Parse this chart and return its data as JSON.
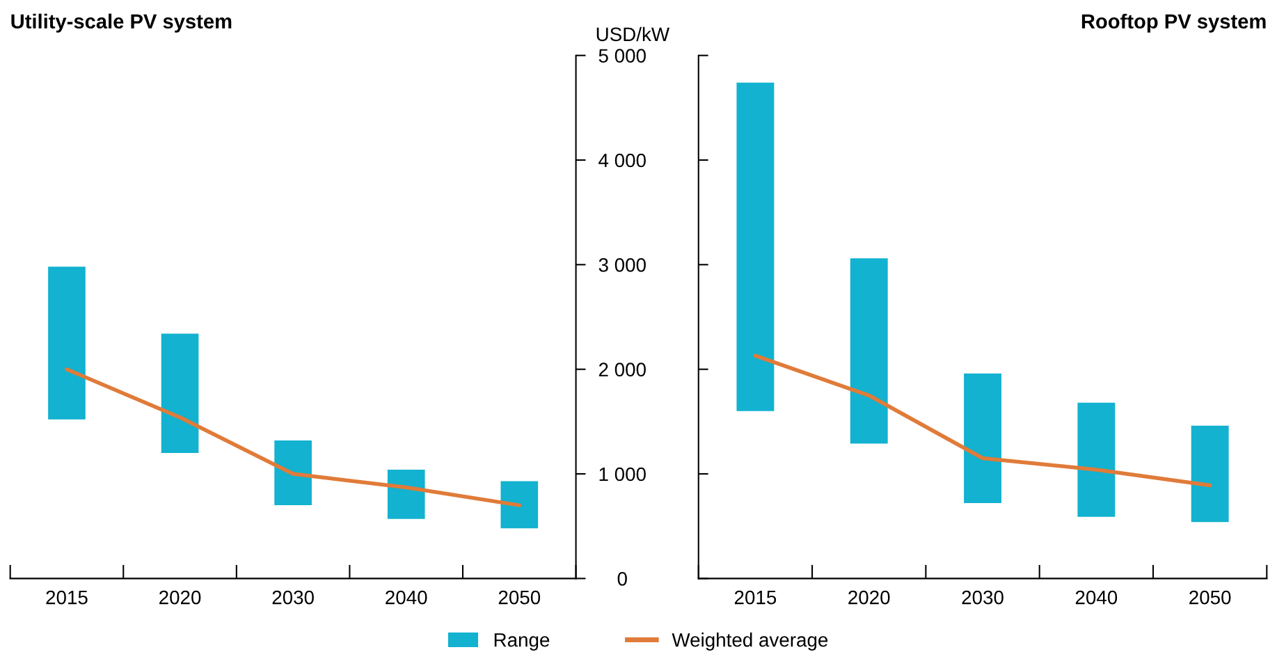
{
  "chart_data": [
    {
      "type": "bar",
      "title": "Utility-scale PV system",
      "ylabel": "USD/kW",
      "categories": [
        "2015",
        "2020",
        "2030",
        "2040",
        "2050"
      ],
      "ylim": [
        0,
        5000
      ],
      "yticks": [
        0,
        {
          "value": 1000,
          "label": "1 000"
        },
        {
          "value": 2000,
          "label": "2 000"
        },
        {
          "value": 3000,
          "label": "3 000"
        },
        {
          "value": 4000,
          "label": "4 000"
        },
        {
          "value": 5000,
          "label": "5 000"
        }
      ],
      "grid": false,
      "legend": "bottom",
      "series": [
        {
          "name": "Range",
          "color": "#12b2d0",
          "base": [
            1520,
            1200,
            700,
            570,
            480
          ],
          "values": [
            1460,
            1140,
            620,
            470,
            450
          ]
        },
        {
          "name": "Weighted average",
          "type": "line",
          "color": "#e07b39",
          "values": [
            2000,
            1540,
            1000,
            870,
            700
          ]
        }
      ]
    },
    {
      "type": "bar",
      "title": "Rooftop PV system",
      "categories": [
        "2015",
        "2020",
        "2030",
        "2040",
        "2050"
      ],
      "ylim": [
        0,
        5000
      ],
      "yticks": [
        {
          "value": 0,
          "label": null
        },
        {
          "value": 1000,
          "label": null
        },
        {
          "value": 2000,
          "label": null
        },
        {
          "value": 3000,
          "label": null
        },
        {
          "value": 4000,
          "label": null
        },
        {
          "value": 5000,
          "label": null
        }
      ],
      "grid": false,
      "tick_labels": "x",
      "series": [
        {
          "color": "#12b2d0",
          "base": [
            1600,
            1290,
            720,
            590,
            540
          ],
          "values": [
            3140,
            1770,
            1240,
            1090,
            920
          ]
        },
        {
          "type": "line",
          "color": "#e07b39",
          "values": [
            2130,
            1750,
            1150,
            1040,
            890
          ]
        }
      ]
    }
  ]
}
